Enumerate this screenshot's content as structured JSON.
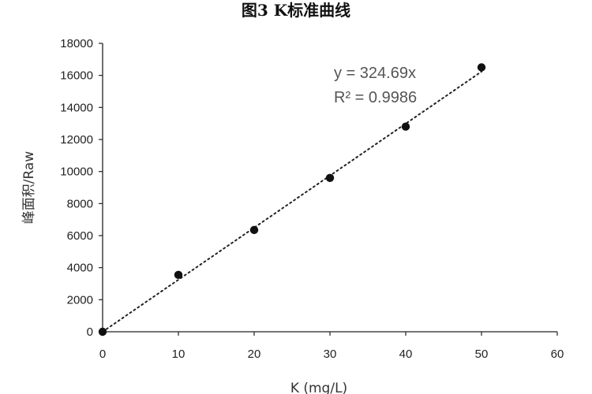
{
  "chart_data": {
    "type": "scatter",
    "title": "图3 K标准曲线",
    "xlabel": "K (mg/L)",
    "ylabel": "峰面积/Raw",
    "xlim": [
      0,
      60
    ],
    "ylim": [
      0,
      18000
    ],
    "x_ticks": [
      0,
      10,
      20,
      30,
      40,
      50,
      60
    ],
    "y_ticks": [
      0,
      2000,
      4000,
      6000,
      8000,
      10000,
      12000,
      14000,
      16000,
      18000
    ],
    "grid": false,
    "series": [
      {
        "points": [
          {
            "x": 0,
            "y": 0
          },
          {
            "x": 10,
            "y": 3550
          },
          {
            "x": 20,
            "y": 6350
          },
          {
            "x": 30,
            "y": 9600
          },
          {
            "x": 40,
            "y": 12800
          },
          {
            "x": 50,
            "y": 16500
          }
        ]
      }
    ],
    "trendline": {
      "type": "linear",
      "slope": 324.69,
      "style": "dotted",
      "equation": "y = 324.69x",
      "r_squared": "R² = 0.9986"
    },
    "colors": {
      "marker": "#111111",
      "axis": "#222222",
      "trendline": "#222222"
    }
  }
}
